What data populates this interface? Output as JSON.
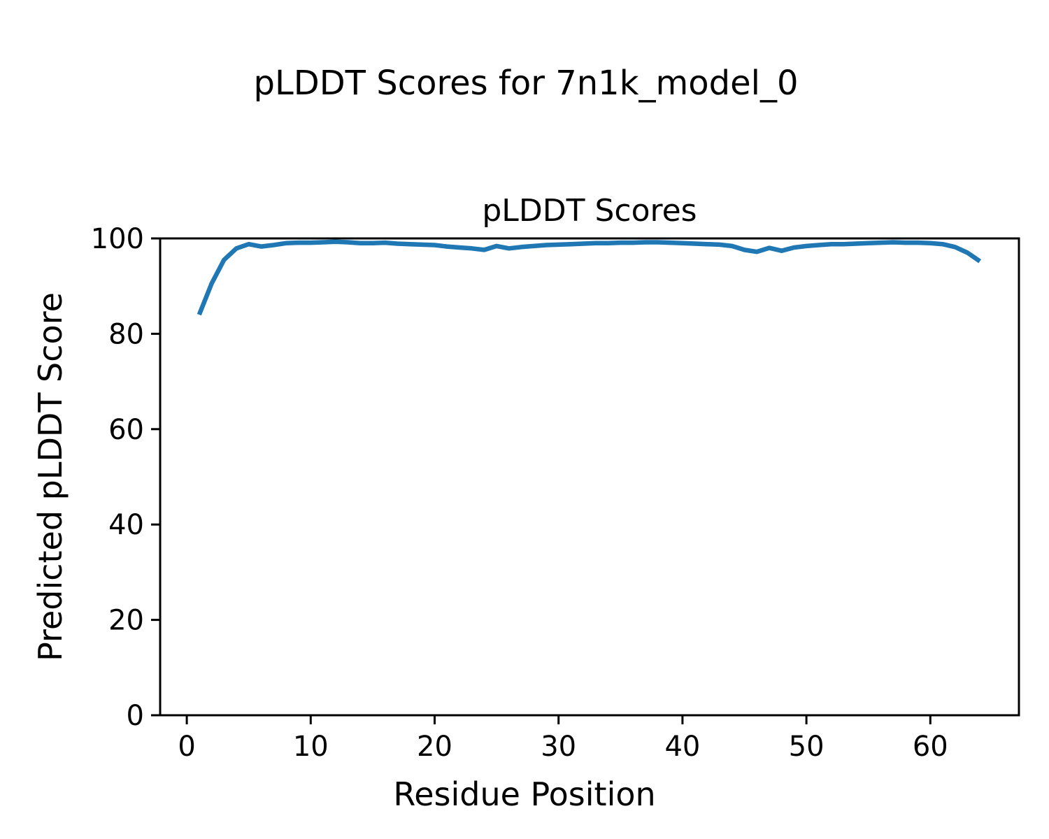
{
  "chart_data": {
    "type": "line",
    "suptitle": "pLDDT Scores for 7n1k_model_0",
    "title": "pLDDT Scores",
    "xlabel": "Residue Position",
    "ylabel": "Predicted pLDDT Score",
    "xlim": [
      -2.15,
      67.15
    ],
    "ylim": [
      0,
      100
    ],
    "xticks": [
      0,
      10,
      20,
      30,
      40,
      50,
      60
    ],
    "yticks": [
      0,
      20,
      40,
      60,
      80,
      100
    ],
    "grid": false,
    "legend_position": "none",
    "line_color": "#1f77b4",
    "series": [
      {
        "name": "pLDDT",
        "x": [
          1,
          2,
          3,
          4,
          5,
          6,
          7,
          8,
          9,
          10,
          11,
          12,
          13,
          14,
          15,
          16,
          17,
          18,
          19,
          20,
          21,
          22,
          23,
          24,
          25,
          26,
          27,
          28,
          29,
          30,
          31,
          32,
          33,
          34,
          35,
          36,
          37,
          38,
          39,
          40,
          41,
          42,
          43,
          44,
          45,
          46,
          47,
          48,
          49,
          50,
          51,
          52,
          53,
          54,
          55,
          56,
          57,
          58,
          59,
          60,
          61,
          62,
          63,
          64
        ],
        "values": [
          84.0,
          90.5,
          95.5,
          97.9,
          98.8,
          98.3,
          98.6,
          99.0,
          99.1,
          99.1,
          99.2,
          99.3,
          99.2,
          99.0,
          99.0,
          99.1,
          98.9,
          98.8,
          98.7,
          98.6,
          98.3,
          98.1,
          97.9,
          97.6,
          98.4,
          97.9,
          98.2,
          98.4,
          98.6,
          98.7,
          98.8,
          98.9,
          99.0,
          99.0,
          99.1,
          99.1,
          99.2,
          99.2,
          99.1,
          99.0,
          98.9,
          98.8,
          98.7,
          98.4,
          97.6,
          97.2,
          98.0,
          97.4,
          98.1,
          98.4,
          98.6,
          98.8,
          98.8,
          98.9,
          99.0,
          99.1,
          99.2,
          99.1,
          99.1,
          99.0,
          98.8,
          98.2,
          97.0,
          95.2
        ]
      }
    ]
  },
  "colors": {
    "background": "#ffffff",
    "axes": "#000000",
    "line": "#1f77b4"
  }
}
